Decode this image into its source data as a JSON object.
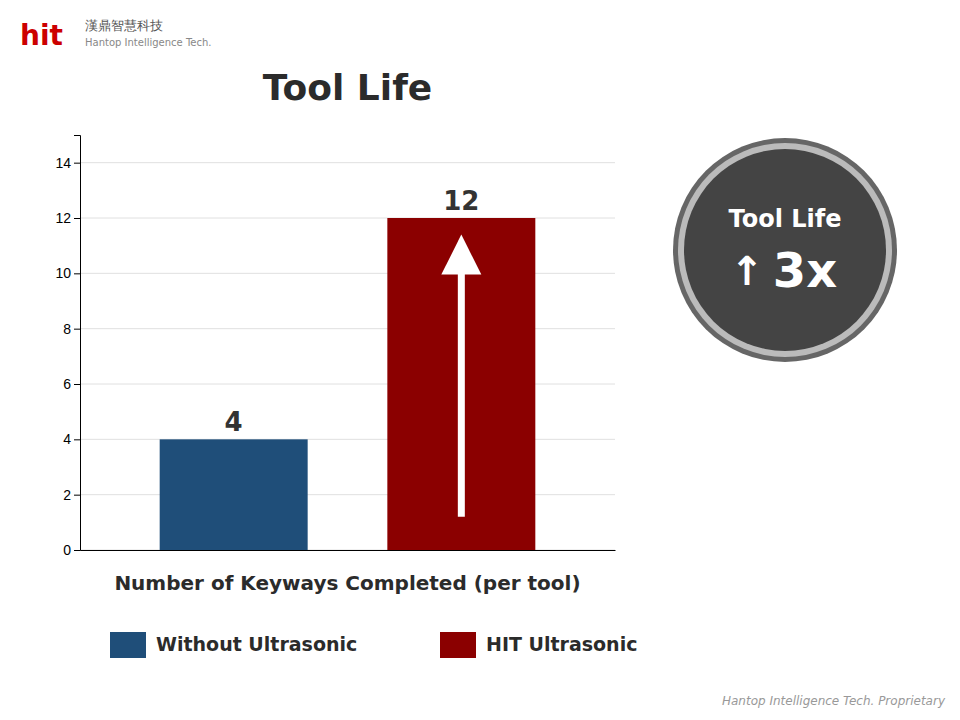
{
  "chart_data": {
    "type": "bar",
    "title": "Tool Life",
    "xlabel": "Number of Keyways Completed (per tool)",
    "categories": [
      "Without Ultrasonic",
      "HIT Ultrasonic"
    ],
    "values": [
      4,
      12
    ],
    "colors": [
      "#1F4E79",
      "#8B0000"
    ],
    "ylim": [
      0,
      15
    ],
    "yticks": [
      0,
      2,
      4,
      6,
      8,
      10,
      12,
      14
    ],
    "grid": true,
    "legend": "bottom",
    "data_labels": true,
    "tick_labels": "y",
    "annotations": [
      "Tool Life",
      "↑",
      "3x",
      "Hantop Intelligence Tech. Proprietary",
      "hit",
      "漢鼎智慧科技",
      "Hantop Intelligence Tech."
    ]
  }
}
